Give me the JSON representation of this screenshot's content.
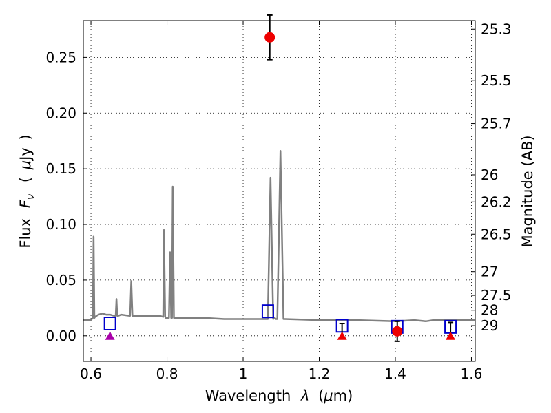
{
  "chart_data": {
    "type": "scatter",
    "xlabel_text": "Wavelength",
    "xlabel_symbol": "λ",
    "xlabel_unit_open": "(",
    "xlabel_unit_mu": "μ",
    "xlabel_unit_rest": "m)",
    "ylabel_text": "Flux",
    "ylabel_symbol": "F",
    "ylabel_subscript": "ν",
    "ylabel_unit_open": "(",
    "ylabel_unit_mu": "μ",
    "ylabel_unit_rest": "Jy",
    "ylabel_unit_close": ")",
    "y2label": "Magnitude (AB)",
    "xlim": [
      0.58,
      1.61
    ],
    "ylim": [
      -0.023,
      0.283
    ],
    "grid": true,
    "xticks": [
      0.6,
      0.8,
      1.0,
      1.2,
      1.4,
      1.6
    ],
    "xtick_labels": [
      "0.6",
      "0.8",
      "1",
      "1.2",
      "1.4",
      "1.6"
    ],
    "yticks": [
      0.0,
      0.05,
      0.1,
      0.15,
      0.2,
      0.25
    ],
    "ytick_labels": [
      "0.00",
      "0.05",
      "0.10",
      "0.15",
      "0.20",
      "0.25"
    ],
    "y2ticks": [
      {
        "label": "25.3",
        "mag": 25.3
      },
      {
        "label": "25.5",
        "mag": 25.5
      },
      {
        "label": "25.7",
        "mag": 25.7
      },
      {
        "label": "26",
        "mag": 26.0
      },
      {
        "label": "26.2",
        "mag": 26.2
      },
      {
        "label": "26.5",
        "mag": 26.5
      },
      {
        "label": "27",
        "mag": 27.0
      },
      {
        "label": "27.5",
        "mag": 27.5
      },
      {
        "label": "28",
        "mag": 28.0
      },
      {
        "label": "29",
        "mag": 29.0
      }
    ],
    "series": [
      {
        "kind": "spectrum",
        "color": "#808080",
        "x": [
          0.58,
          0.6,
          0.605,
          0.607,
          0.609,
          0.611,
          0.615,
          0.62,
          0.63,
          0.64,
          0.65,
          0.66,
          0.665,
          0.667,
          0.669,
          0.672,
          0.68,
          0.7,
          0.703,
          0.706,
          0.709,
          0.712,
          0.72,
          0.75,
          0.78,
          0.79,
          0.792,
          0.795,
          0.797,
          0.8,
          0.805,
          0.808,
          0.811,
          0.813,
          0.815,
          0.818,
          0.821,
          0.825,
          0.85,
          0.9,
          0.95,
          1.0,
          1.03,
          1.06,
          1.065,
          1.072,
          1.079,
          1.083,
          1.086,
          1.09,
          1.098,
          1.106,
          1.11,
          1.2,
          1.3,
          1.4,
          1.45,
          1.48,
          1.5,
          1.52,
          1.55,
          1.6,
          1.61
        ],
        "y": [
          0.014,
          0.014,
          0.016,
          0.089,
          0.016,
          0.017,
          0.018,
          0.019,
          0.02,
          0.019,
          0.019,
          0.018,
          0.018,
          0.033,
          0.018,
          0.018,
          0.019,
          0.018,
          0.018,
          0.049,
          0.018,
          0.018,
          0.018,
          0.018,
          0.018,
          0.017,
          0.095,
          0.017,
          0.016,
          0.016,
          0.016,
          0.075,
          0.016,
          0.016,
          0.134,
          0.016,
          0.016,
          0.016,
          0.016,
          0.016,
          0.015,
          0.015,
          0.015,
          0.015,
          0.015,
          0.142,
          0.015,
          0.016,
          0.015,
          0.015,
          0.166,
          0.015,
          0.015,
          0.014,
          0.014,
          0.013,
          0.014,
          0.013,
          0.014,
          0.014,
          0.014,
          0.014,
          0.014
        ]
      },
      {
        "kind": "open-squares",
        "color": "#0000cc",
        "x": [
          0.65,
          1.065,
          1.26,
          1.405,
          1.545
        ],
        "y": [
          0.011,
          0.022,
          0.009,
          0.008,
          0.008
        ]
      },
      {
        "kind": "filled-circles",
        "color": "#ee0000",
        "x": [
          1.07,
          1.405
        ],
        "y": [
          0.268,
          0.004
        ],
        "yerr": [
          0.02,
          0.009
        ]
      },
      {
        "kind": "upper-limits",
        "color": "#000000",
        "x": [
          1.26,
          1.545
        ],
        "y": [
          0.0,
          0.0
        ],
        "ytop": [
          0.011,
          0.012
        ]
      },
      {
        "kind": "triangles",
        "color": "#ee0000",
        "x": [
          1.26,
          1.545
        ],
        "y": [
          0.0,
          0.0
        ]
      },
      {
        "kind": "triangles",
        "color": "#aa00aa",
        "x": [
          0.65
        ],
        "y": [
          0.0
        ],
        "ytop": [
          0.003
        ]
      }
    ]
  }
}
